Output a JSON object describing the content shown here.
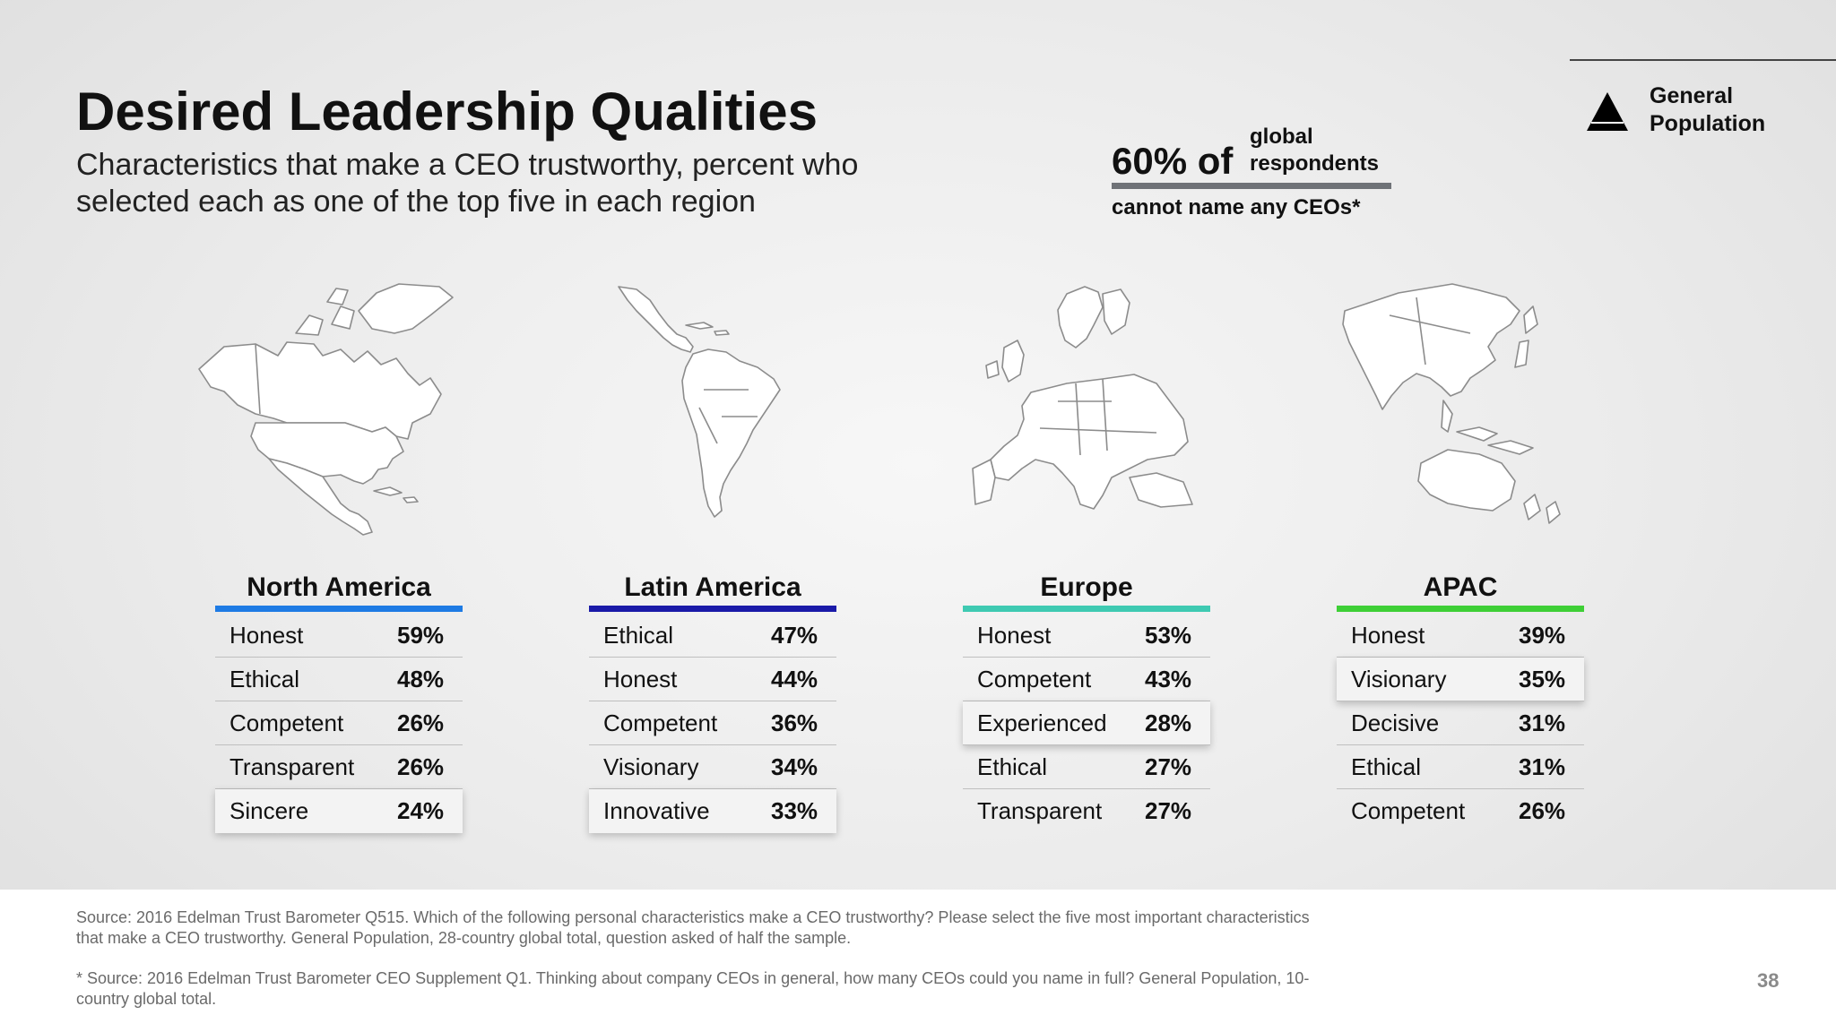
{
  "title": "Desired Leadership Qualities",
  "subtitle": "Characteristics that make a CEO trustworthy, percent who selected each as one of the top five in each region",
  "ceo_stat": {
    "big": "60% of",
    "small_line1": "global",
    "small_line2": "respondents",
    "bottom": "cannot name any CEOs*"
  },
  "legend": {
    "icon": "triangle-icon",
    "line1": "General",
    "line2": "Population"
  },
  "colors": {
    "north_america": "#1e7be4",
    "latin_america": "#1a1aa8",
    "europe": "#3fcab2",
    "apac": "#3ecf36"
  },
  "chart_data": {
    "type": "table",
    "unit": "%",
    "regions": [
      {
        "name": "North America",
        "items": [
          {
            "label": "Honest",
            "value": 59,
            "display": "59%"
          },
          {
            "label": "Ethical",
            "value": 48,
            "display": "48%"
          },
          {
            "label": "Competent",
            "value": 26,
            "display": "26%"
          },
          {
            "label": "Transparent",
            "value": 26,
            "display": "26%"
          },
          {
            "label": "Sincere",
            "value": 24,
            "display": "24%"
          }
        ]
      },
      {
        "name": "Latin America",
        "items": [
          {
            "label": "Ethical",
            "value": 47,
            "display": "47%"
          },
          {
            "label": "Honest",
            "value": 44,
            "display": "44%"
          },
          {
            "label": "Competent",
            "value": 36,
            "display": "36%"
          },
          {
            "label": "Visionary",
            "value": 34,
            "display": "34%"
          },
          {
            "label": "Innovative",
            "value": 33,
            "display": "33%"
          }
        ]
      },
      {
        "name": "Europe",
        "items": [
          {
            "label": "Honest",
            "value": 53,
            "display": "53%"
          },
          {
            "label": "Competent",
            "value": 43,
            "display": "43%"
          },
          {
            "label": "Experienced",
            "value": 28,
            "display": "28%"
          },
          {
            "label": "Ethical",
            "value": 27,
            "display": "27%"
          },
          {
            "label": "Transparent",
            "value": 27,
            "display": "27%"
          }
        ]
      },
      {
        "name": "APAC",
        "items": [
          {
            "label": "Honest",
            "value": 39,
            "display": "39%"
          },
          {
            "label": "Visionary",
            "value": 35,
            "display": "35%"
          },
          {
            "label": "Decisive",
            "value": 31,
            "display": "31%"
          },
          {
            "label": "Ethical",
            "value": 31,
            "display": "31%"
          },
          {
            "label": "Competent",
            "value": 26,
            "display": "26%"
          }
        ]
      }
    ]
  },
  "footer": {
    "source1": "Source: 2016 Edelman Trust Barometer Q515. Which of the following personal characteristics make a CEO trustworthy? Please select the five most important characteristics that make a CEO trustworthy. General Population, 28-country global total, question asked of half the sample.",
    "source2": "* Source: 2016 Edelman Trust Barometer CEO Supplement Q1. Thinking about company CEOs in general, how many CEOs could you name in full? General Population, 10-country global total.",
    "page_number": "38"
  }
}
